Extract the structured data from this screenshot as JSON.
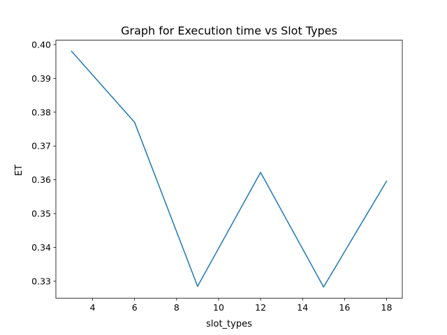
{
  "chart_data": {
    "type": "line",
    "title": "Graph for Execution time vs Slot Types",
    "xlabel": "slot_types",
    "ylabel": "ET",
    "x_ticks": [
      4,
      6,
      8,
      10,
      12,
      14,
      16,
      18
    ],
    "y_ticks": [
      "0.33",
      "0.34",
      "0.35",
      "0.36",
      "0.37",
      "0.38",
      "0.39",
      "0.40"
    ],
    "xlim": [
      2.25,
      18.75
    ],
    "ylim": [
      0.325,
      0.4013
    ],
    "grid": false,
    "series": [
      {
        "color": "#1f77b4",
        "x": [
          3,
          6,
          9,
          12,
          15,
          18
        ],
        "y": [
          0.398,
          0.377,
          0.3285,
          0.3622,
          0.3283,
          0.3596
        ]
      }
    ]
  }
}
